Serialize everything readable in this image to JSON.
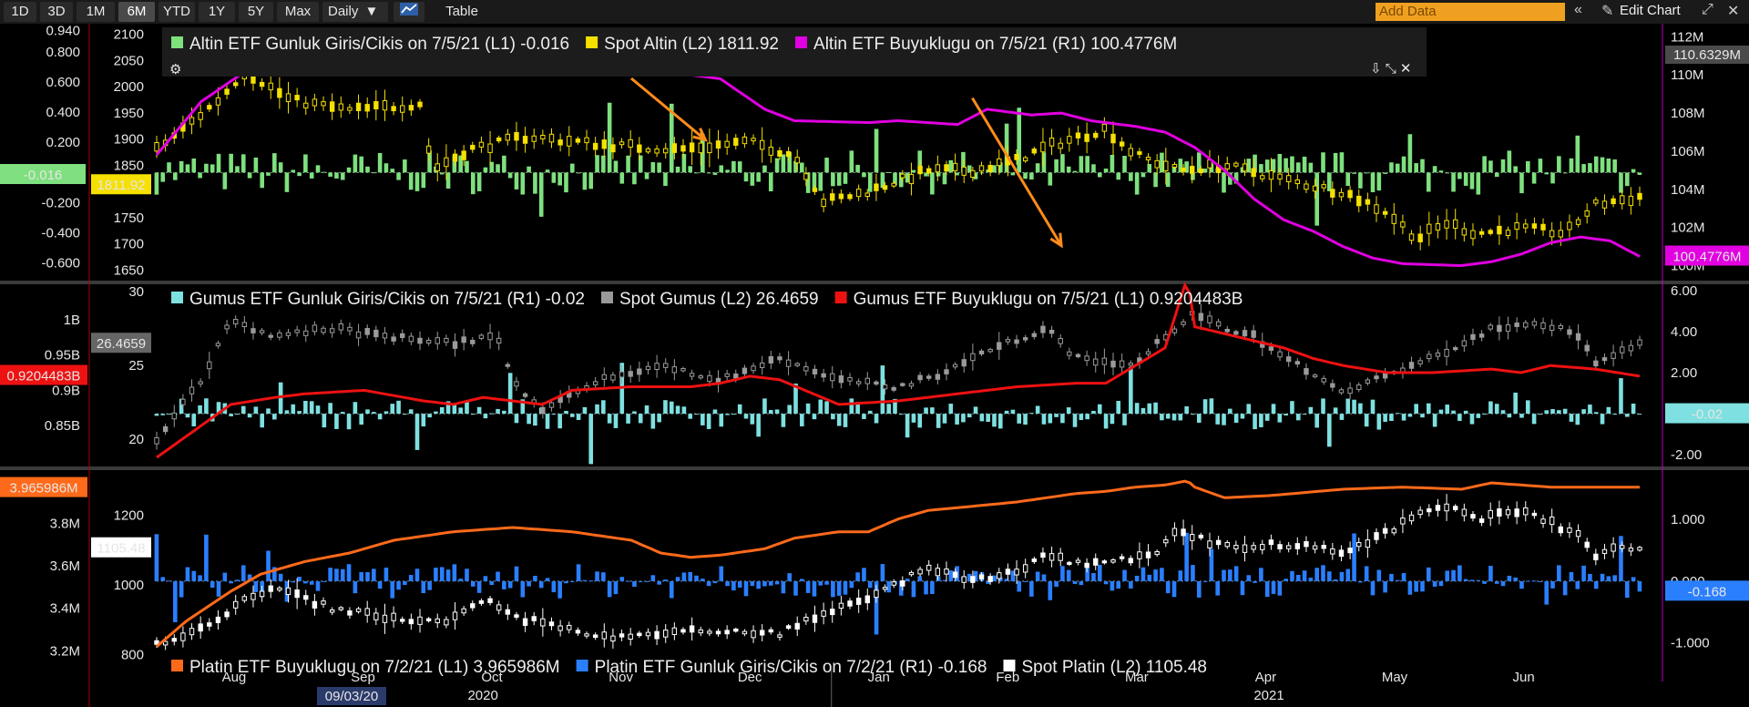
{
  "toolbar": {
    "ranges": [
      "1D",
      "3D",
      "1M",
      "6M",
      "YTD",
      "1Y",
      "5Y",
      "Max"
    ],
    "active_range": "6M",
    "frequency": "Daily",
    "table_label": "Table",
    "add_data_placeholder": "Add Data",
    "edit_chart_label": "Edit Chart"
  },
  "colors": {
    "gold_flow": "#7ee07e",
    "gold_spot": "#f5e000",
    "gold_size": "#e000e0",
    "silver_flow": "#7ee0e0",
    "silver_spot": "#9a9a9a",
    "silver_size": "#ee1111",
    "plat_size": "#ff6a1a",
    "plat_flow": "#2a7fff",
    "plat_spot": "#ffffff",
    "annotation_arrow": "#ff8c1a"
  },
  "chart_data": [
    {
      "type": "line",
      "panel": "gold",
      "legend_position": "top",
      "series": [
        {
          "name": "Altin ETF Gunluk Giris/Cikis on 7/5/21 (L1)",
          "last_label": "-0.016",
          "axis": "L1",
          "style": "bar"
        },
        {
          "name": "Spot Altin (L2)",
          "last_label": "1811.92",
          "axis": "L2",
          "style": "candle"
        },
        {
          "name": "Altin ETF Buyuklugu on 7/5/21 (R1)",
          "last_label": "100.4776M",
          "axis": "R1",
          "style": "line"
        }
      ],
      "axes": {
        "L1": {
          "ticks": [
            "0.940",
            "0.800",
            "0.600",
            "0.400",
            "0.200",
            "-0.200",
            "-0.400",
            "-0.600"
          ],
          "ylim": [
            -0.68,
            0.95
          ]
        },
        "L2": {
          "ticks": [
            "2100",
            "2050",
            "2000",
            "1950",
            "1900",
            "1850",
            "1750",
            "1700",
            "1650"
          ],
          "ylim": [
            1640,
            2110
          ]
        },
        "R1": {
          "ticks": [
            "112M",
            "110M",
            "108M",
            "106M",
            "104M",
            "102M",
            "100M"
          ],
          "top_label": "110.6329M",
          "ylim": [
            99.5,
            112.4
          ]
        }
      },
      "spot_path": [
        [
          0,
          1880
        ],
        [
          0.04,
          1970
        ],
        [
          0.06,
          2030
        ],
        [
          0.09,
          1975
        ],
        [
          0.13,
          1955
        ],
        [
          0.17,
          1965
        ],
        [
          0.18,
          1970
        ],
        [
          0.185,
          1840
        ],
        [
          0.21,
          1880
        ],
        [
          0.25,
          1905
        ],
        [
          0.3,
          1890
        ],
        [
          0.35,
          1880
        ],
        [
          0.4,
          1895
        ],
        [
          0.43,
          1870
        ],
        [
          0.45,
          1780
        ],
        [
          0.48,
          1800
        ],
        [
          0.52,
          1840
        ],
        [
          0.55,
          1840
        ],
        [
          0.58,
          1860
        ],
        [
          0.6,
          1885
        ],
        [
          0.64,
          1920
        ],
        [
          0.66,
          1870
        ],
        [
          0.69,
          1840
        ],
        [
          0.72,
          1850
        ],
        [
          0.75,
          1830
        ],
        [
          0.78,
          1810
        ],
        [
          0.8,
          1800
        ],
        [
          0.83,
          1760
        ],
        [
          0.85,
          1710
        ],
        [
          0.87,
          1740
        ],
        [
          0.89,
          1720
        ],
        [
          0.92,
          1730
        ],
        [
          0.95,
          1720
        ],
        [
          0.97,
          1775
        ],
        [
          1,
          1790
        ]
      ],
      "size_path": [
        [
          0,
          105.8
        ],
        [
          0.03,
          108.6
        ],
        [
          0.06,
          110.2
        ],
        [
          0.09,
          110.0
        ],
        [
          0.12,
          110.6
        ],
        [
          0.15,
          110.9
        ],
        [
          0.2,
          111.0
        ],
        [
          0.28,
          110.8
        ],
        [
          0.33,
          110.3
        ],
        [
          0.38,
          109.8
        ],
        [
          0.41,
          108.2
        ],
        [
          0.43,
          107.6
        ],
        [
          0.48,
          107.5
        ],
        [
          0.5,
          107.6
        ],
        [
          0.54,
          107.4
        ],
        [
          0.56,
          108.2
        ],
        [
          0.59,
          107.9
        ],
        [
          0.61,
          108.0
        ],
        [
          0.63,
          107.6
        ],
        [
          0.66,
          107.3
        ],
        [
          0.68,
          107.0
        ],
        [
          0.7,
          106.2
        ],
        [
          0.72,
          105.0
        ],
        [
          0.74,
          103.5
        ],
        [
          0.76,
          102.4
        ],
        [
          0.78,
          101.8
        ],
        [
          0.8,
          101.0
        ],
        [
          0.82,
          100.4
        ],
        [
          0.84,
          100.1
        ],
        [
          0.88,
          100.0
        ],
        [
          0.9,
          100.2
        ],
        [
          0.92,
          100.6
        ],
        [
          0.94,
          101.2
        ],
        [
          0.96,
          101.5
        ],
        [
          0.98,
          101.3
        ],
        [
          1,
          100.48
        ]
      ],
      "annotations": [
        {
          "type": "arrow",
          "from": [
            0.32,
            0.2
          ],
          "to": [
            0.37,
            0.45
          ]
        },
        {
          "type": "arrow",
          "from": [
            0.55,
            0.28
          ],
          "to": [
            0.61,
            0.88
          ]
        }
      ]
    },
    {
      "type": "line",
      "panel": "silver",
      "legend_position": "top",
      "series": [
        {
          "name": "Gumus ETF Gunluk Giris/Cikis on 7/5/21 (R1)",
          "last_label": "-0.02",
          "axis": "R1",
          "style": "bar"
        },
        {
          "name": "Spot Gumus (L2)",
          "last_label": "26.4659",
          "axis": "L2",
          "style": "candle"
        },
        {
          "name": "Gumus ETF Buyuklugu on 7/5/21 (L1)",
          "last_label": "0.9204483B",
          "axis": "L1",
          "style": "line"
        }
      ],
      "axes": {
        "L1": {
          "ticks": [
            "1B",
            "0.95B",
            "0.9B",
            "0.85B"
          ],
          "ylim": [
            0.8,
            1.05
          ]
        },
        "L2": {
          "ticks": [
            "30",
            "25",
            "20"
          ],
          "ylim": [
            18.5,
            30.5
          ]
        },
        "R1": {
          "ticks": [
            "6.00",
            "4.00",
            "2.00",
            "-2.00"
          ],
          "ylim": [
            -2.3,
            6.3
          ]
        }
      },
      "spot_path": [
        [
          0,
          20
        ],
        [
          0.03,
          24
        ],
        [
          0.05,
          28
        ],
        [
          0.08,
          27
        ],
        [
          0.12,
          27.5
        ],
        [
          0.15,
          27
        ],
        [
          0.2,
          26.5
        ],
        [
          0.23,
          27
        ],
        [
          0.24,
          24
        ],
        [
          0.26,
          22
        ],
        [
          0.3,
          24
        ],
        [
          0.34,
          25
        ],
        [
          0.38,
          24
        ],
        [
          0.42,
          25.5
        ],
        [
          0.46,
          24
        ],
        [
          0.5,
          23.5
        ],
        [
          0.53,
          24.5
        ],
        [
          0.56,
          26
        ],
        [
          0.6,
          27.5
        ],
        [
          0.62,
          25.5
        ],
        [
          0.66,
          25
        ],
        [
          0.68,
          27
        ],
        [
          0.7,
          28.5
        ],
        [
          0.72,
          27.5
        ],
        [
          0.74,
          27
        ],
        [
          0.76,
          25.5
        ],
        [
          0.78,
          24.5
        ],
        [
          0.8,
          23
        ],
        [
          0.82,
          24
        ],
        [
          0.86,
          25.5
        ],
        [
          0.9,
          27.5
        ],
        [
          0.93,
          28
        ],
        [
          0.96,
          27
        ],
        [
          0.97,
          25
        ],
        [
          1,
          26.47
        ]
      ],
      "size_path": [
        [
          0,
          0.805
        ],
        [
          0.02,
          0.835
        ],
        [
          0.05,
          0.88
        ],
        [
          0.08,
          0.89
        ],
        [
          0.1,
          0.895
        ],
        [
          0.14,
          0.9
        ],
        [
          0.18,
          0.885
        ],
        [
          0.2,
          0.88
        ],
        [
          0.22,
          0.89
        ],
        [
          0.26,
          0.88
        ],
        [
          0.28,
          0.9
        ],
        [
          0.32,
          0.905
        ],
        [
          0.36,
          0.905
        ],
        [
          0.38,
          0.91
        ],
        [
          0.4,
          0.92
        ],
        [
          0.42,
          0.915
        ],
        [
          0.46,
          0.88
        ],
        [
          0.5,
          0.885
        ],
        [
          0.54,
          0.895
        ],
        [
          0.58,
          0.905
        ],
        [
          0.62,
          0.91
        ],
        [
          0.64,
          0.91
        ],
        [
          0.66,
          0.935
        ],
        [
          0.68,
          0.96
        ],
        [
          0.695,
          1.06
        ],
        [
          0.7,
          0.99
        ],
        [
          0.72,
          0.98
        ],
        [
          0.76,
          0.96
        ],
        [
          0.78,
          0.945
        ],
        [
          0.8,
          0.935
        ],
        [
          0.83,
          0.925
        ],
        [
          0.86,
          0.925
        ],
        [
          0.9,
          0.93
        ],
        [
          0.92,
          0.925
        ],
        [
          0.94,
          0.935
        ],
        [
          0.97,
          0.93
        ],
        [
          1,
          0.92
        ]
      ]
    },
    {
      "type": "line",
      "panel": "platinum",
      "legend_position": "bottom",
      "series": [
        {
          "name": "Platin ETF Buyuklugu on 7/2/21 (L1)",
          "last_label": "3.965986M",
          "axis": "L1",
          "style": "line"
        },
        {
          "name": "Platin ETF Gunluk Giris/Cikis on 7/2/21 (R1)",
          "last_label": "-0.168",
          "axis": "R1",
          "style": "bar"
        },
        {
          "name": "Spot Platin (L2)",
          "last_label": "1105.48",
          "axis": "L2",
          "style": "candle"
        }
      ],
      "axes": {
        "L1": {
          "ticks": [
            "3.8M",
            "3.6M",
            "3.4M",
            "3.2M"
          ],
          "ylim": [
            3.15,
            4.05
          ]
        },
        "L2": {
          "ticks": [
            "1200",
            "1000",
            "800"
          ],
          "ylim": [
            780,
            1330
          ]
        },
        "R1": {
          "ticks": [
            "1.000",
            "0.000",
            "-1.000"
          ],
          "ylim": [
            -1.3,
            1.8
          ]
        }
      },
      "spot_path": [
        [
          0,
          830
        ],
        [
          0.02,
          860
        ],
        [
          0.04,
          900
        ],
        [
          0.06,
          960
        ],
        [
          0.08,
          1000
        ],
        [
          0.1,
          960
        ],
        [
          0.12,
          930
        ],
        [
          0.14,
          920
        ],
        [
          0.16,
          900
        ],
        [
          0.2,
          900
        ],
        [
          0.22,
          960
        ],
        [
          0.24,
          910
        ],
        [
          0.28,
          870
        ],
        [
          0.3,
          850
        ],
        [
          0.34,
          860
        ],
        [
          0.38,
          870
        ],
        [
          0.42,
          860
        ],
        [
          0.45,
          920
        ],
        [
          0.48,
          960
        ],
        [
          0.52,
          1050
        ],
        [
          0.55,
          1010
        ],
        [
          0.58,
          1040
        ],
        [
          0.6,
          1090
        ],
        [
          0.62,
          1060
        ],
        [
          0.64,
          1070
        ],
        [
          0.67,
          1080
        ],
        [
          0.69,
          1160
        ],
        [
          0.71,
          1120
        ],
        [
          0.73,
          1100
        ],
        [
          0.75,
          1120
        ],
        [
          0.78,
          1110
        ],
        [
          0.8,
          1090
        ],
        [
          0.82,
          1130
        ],
        [
          0.85,
          1200
        ],
        [
          0.87,
          1230
        ],
        [
          0.89,
          1190
        ],
        [
          0.92,
          1210
        ],
        [
          0.94,
          1180
        ],
        [
          0.96,
          1140
        ],
        [
          0.97,
          1080
        ],
        [
          0.98,
          1100
        ],
        [
          1,
          1105
        ]
      ],
      "size_path": [
        [
          0,
          3.22
        ],
        [
          0.02,
          3.34
        ],
        [
          0.05,
          3.48
        ],
        [
          0.07,
          3.56
        ],
        [
          0.1,
          3.62
        ],
        [
          0.13,
          3.66
        ],
        [
          0.16,
          3.72
        ],
        [
          0.2,
          3.76
        ],
        [
          0.24,
          3.78
        ],
        [
          0.28,
          3.76
        ],
        [
          0.3,
          3.74
        ],
        [
          0.32,
          3.72
        ],
        [
          0.34,
          3.66
        ],
        [
          0.36,
          3.64
        ],
        [
          0.38,
          3.65
        ],
        [
          0.41,
          3.68
        ],
        [
          0.43,
          3.73
        ],
        [
          0.46,
          3.76
        ],
        [
          0.48,
          3.76
        ],
        [
          0.5,
          3.82
        ],
        [
          0.52,
          3.86
        ],
        [
          0.55,
          3.88
        ],
        [
          0.58,
          3.9
        ],
        [
          0.6,
          3.92
        ],
        [
          0.62,
          3.94
        ],
        [
          0.64,
          3.95
        ],
        [
          0.66,
          3.97
        ],
        [
          0.68,
          3.98
        ],
        [
          0.695,
          4.0
        ],
        [
          0.7,
          3.97
        ],
        [
          0.72,
          3.92
        ],
        [
          0.75,
          3.93
        ],
        [
          0.8,
          3.96
        ],
        [
          0.84,
          3.97
        ],
        [
          0.88,
          3.96
        ],
        [
          0.9,
          3.99
        ],
        [
          0.92,
          3.98
        ],
        [
          0.94,
          3.97
        ],
        [
          0.96,
          3.97
        ],
        [
          1,
          3.97
        ]
      ]
    }
  ],
  "x_axis": {
    "months": [
      "Aug",
      "Sep",
      "Oct",
      "Nov",
      "Dec",
      "Jan",
      "Feb",
      "Mar",
      "Apr",
      "May",
      "Jun"
    ],
    "years": [
      "2020",
      "2021"
    ],
    "cursor_date": "09/03/20"
  }
}
